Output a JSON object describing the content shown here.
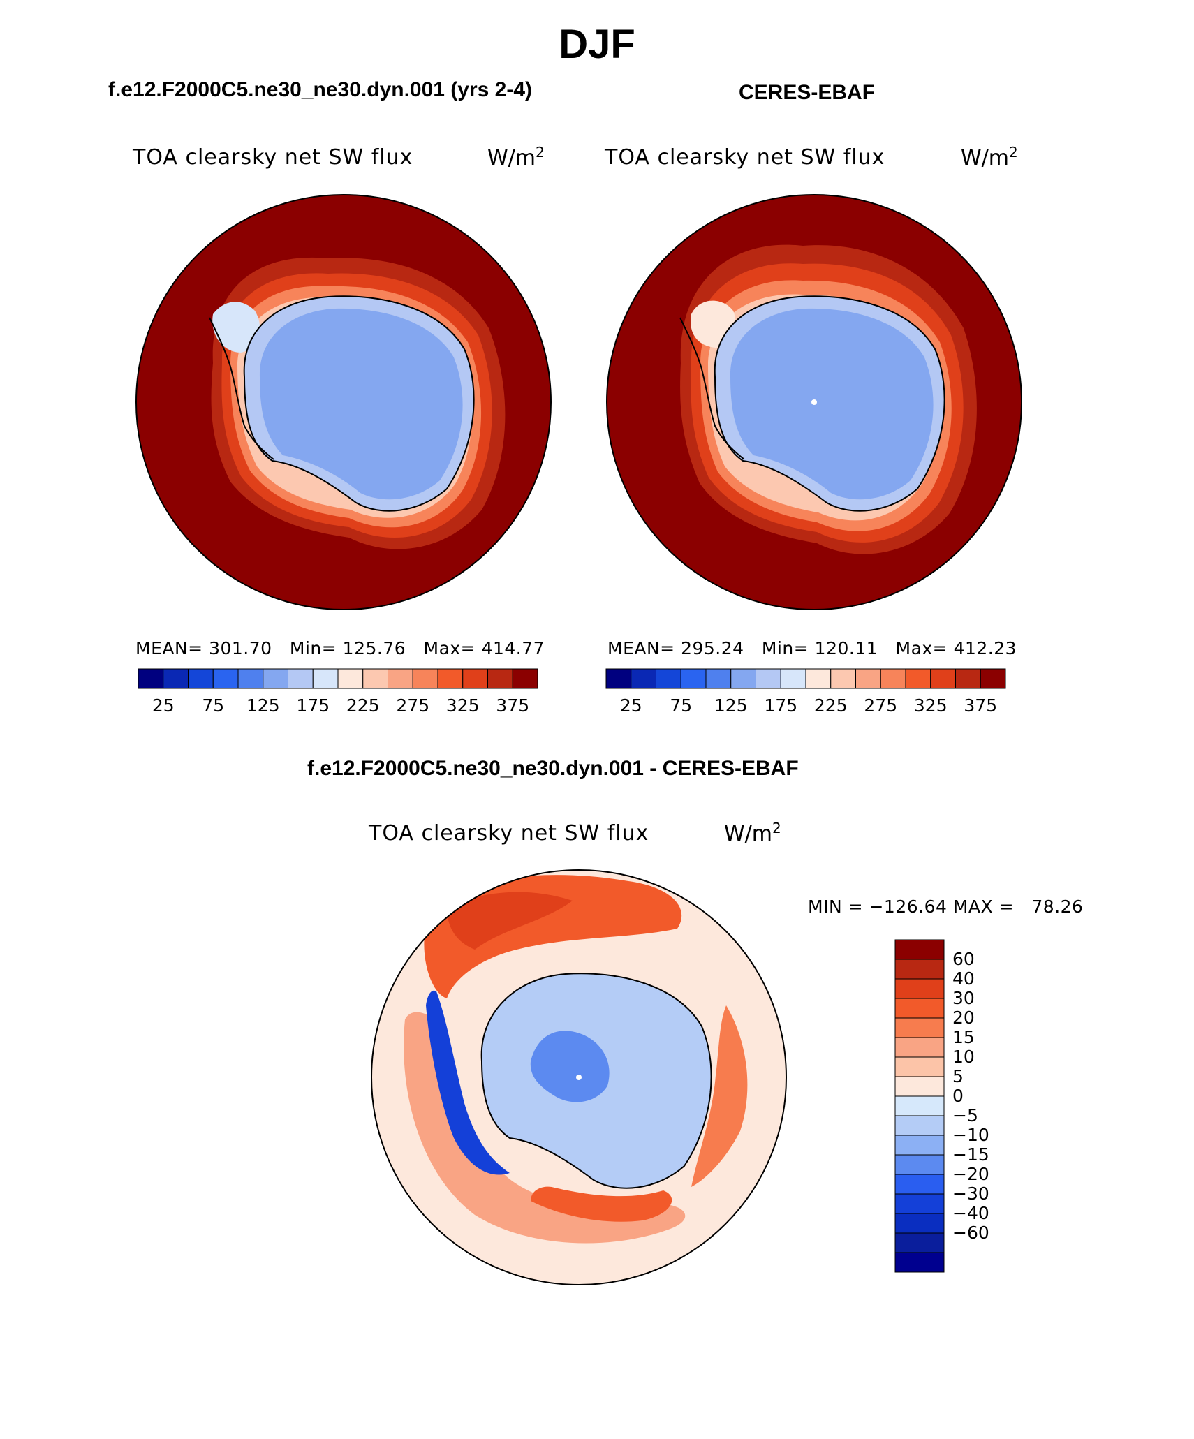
{
  "figure": {
    "season": "DJF",
    "colors": {
      "abs_levels": [
        "#00007f",
        "#0a28b4",
        "#1446d8",
        "#2a64f0",
        "#4f80ee",
        "#84a7f0",
        "#b4c8f4",
        "#d7e6fa",
        "#fde8dc",
        "#fcc8b0",
        "#f9a484",
        "#f7845a",
        "#f25a2a",
        "#e0401a",
        "#b82812",
        "#8b0000"
      ],
      "diff_levels": [
        "#00008f",
        "#0a1e9c",
        "#0a2ec0",
        "#1440d8",
        "#2a5ef0",
        "#5c8af0",
        "#8cb0f4",
        "#b4ccf6",
        "#d6e8fb",
        "#fde8dc",
        "#fcc4a8",
        "#f9a484",
        "#f77c4e",
        "#f25a2a",
        "#e0401a",
        "#b82812",
        "#8b0000"
      ]
    }
  },
  "chart_data": [
    {
      "type": "heatmap",
      "projection": "south-polar-stereographic",
      "case_title": "f.e12.F2000C5.ne30_ne30.dyn.001 (yrs 2-4)",
      "title": "TOA clearsky net SW flux",
      "units_base": "W/m",
      "units_exp": "2",
      "stats": {
        "mean_label": "MEAN=",
        "mean": "301.70",
        "min_label": "Min=",
        "min": "125.76",
        "max_label": "Max=",
        "max": "414.77"
      },
      "colorbar_ticks": [
        "25",
        "75",
        "125",
        "175",
        "225",
        "275",
        "325",
        "375"
      ],
      "colorbar_levels": [
        25,
        50,
        75,
        100,
        125,
        150,
        175,
        200,
        225,
        250,
        275,
        300,
        325,
        350,
        375
      ]
    },
    {
      "type": "heatmap",
      "projection": "south-polar-stereographic",
      "case_title": "CERES-EBAF",
      "title": "TOA clearsky net SW flux",
      "units_base": "W/m",
      "units_exp": "2",
      "stats": {
        "mean_label": "MEAN=",
        "mean": "295.24",
        "min_label": "Min=",
        "min": "120.11",
        "max_label": "Max=",
        "max": "412.23"
      },
      "colorbar_ticks": [
        "25",
        "75",
        "125",
        "175",
        "225",
        "275",
        "325",
        "375"
      ],
      "colorbar_levels": [
        25,
        50,
        75,
        100,
        125,
        150,
        175,
        200,
        225,
        250,
        275,
        300,
        325,
        350,
        375
      ]
    },
    {
      "type": "heatmap",
      "projection": "south-polar-stereographic",
      "case_title": "f.e12.F2000C5.ne30_ne30.dyn.001 - CERES-EBAF",
      "title": "TOA clearsky net SW flux",
      "units_base": "W/m",
      "units_exp": "2",
      "minmax_text": "MIN = −126.64 MAX =   78.26",
      "colorbar_ticks": [
        "60",
        "40",
        "30",
        "20",
        "15",
        "10",
        "5",
        "0",
        "−5",
        "−10",
        "−15",
        "−20",
        "−30",
        "−40",
        "−60"
      ],
      "colorbar_levels": [
        60,
        40,
        30,
        20,
        15,
        10,
        5,
        0,
        -5,
        -10,
        -15,
        -20,
        -30,
        -40,
        -60
      ]
    }
  ]
}
